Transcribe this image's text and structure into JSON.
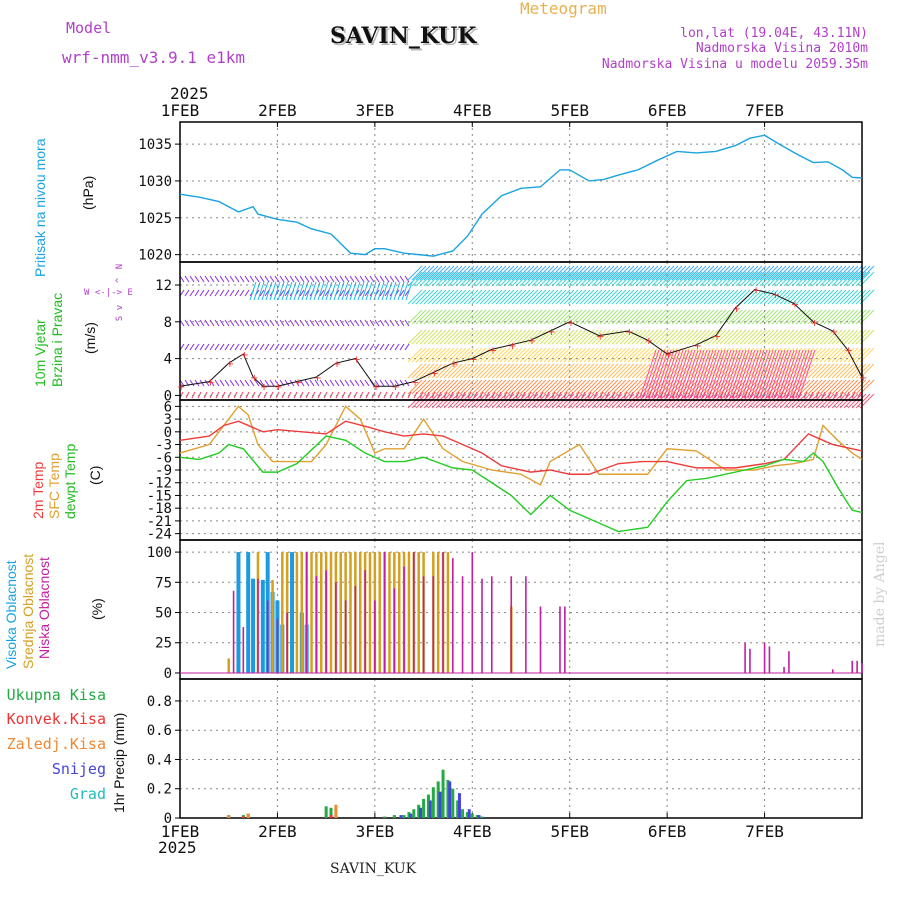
{
  "header": {
    "model_label": "Model",
    "model_name": "wrf-nmm_v3.9.1 e1km",
    "station": "SAVIN_KUK",
    "chart_kind": "Meteogram",
    "lonlat": "lon,lat (19.04E, 43.11N)",
    "elevation": "Nadmorska Visina 2010m",
    "model_elevation": "Nadmorska Visina u modelu 2059.35m",
    "year": "2025"
  },
  "footer": {
    "station": "SAVIN_KUK",
    "year": "2025",
    "credit": "made by Angel"
  },
  "colors": {
    "pressure": "#1aa3e0",
    "temp2m": "#ee3b3b",
    "sfc": "#e0a030",
    "dew": "#22cc22",
    "high": "#1e9be0",
    "mid": "#d4a020",
    "low": "#c020a0",
    "total": "#22aa44",
    "conv": "#ee3333",
    "snow": "#4444dd",
    "grid": "#888888"
  },
  "panel_labels": {
    "pressure": [
      "Pritisak na nivou mora",
      "(hPa)"
    ],
    "wind": [
      "10m Vjetar",
      "Brzina i Pravac",
      "(m/s)"
    ],
    "wind_compass": [
      "N",
      "^",
      "W <-|-> E",
      "v",
      "S"
    ],
    "temp": [
      "2m Temp",
      "SFC Temp",
      "dewpt Temp",
      "(C)"
    ],
    "cloud": [
      "Visoka Oblacnost",
      "Srednja Oblacnost",
      "Niska Oblacnost",
      "(%)"
    ],
    "precip_legend": [
      "Ukupna Kisa",
      "Konvek.Kisa",
      "Zaledj.Kisa",
      "Snijeg",
      "Grad"
    ],
    "precip_axis": "1hr Precip (mm)"
  },
  "chart_data": [
    {
      "type": "line",
      "ylabel": "(hPa)",
      "x_ticks": [
        "1FEB",
        "2FEB",
        "3FEB",
        "4FEB",
        "5FEB",
        "6FEB",
        "7FEB"
      ],
      "y_ticks": [
        "1020",
        "1025",
        "1030",
        "1035"
      ],
      "ylim": [
        1019,
        1038
      ],
      "grid": true,
      "series": [
        {
          "name": "Pritisak na nivou mora",
          "x": [
            0,
            0.2,
            0.4,
            0.5,
            0.6,
            0.75,
            0.8,
            1.0,
            1.2,
            1.35,
            1.55,
            1.65,
            1.75,
            1.9,
            2.0,
            2.1,
            2.3,
            2.45,
            2.6,
            2.8,
            2.95,
            3.1,
            3.3,
            3.5,
            3.7,
            3.9,
            4.0,
            4.2,
            4.35,
            4.5,
            4.7,
            4.9,
            5.1,
            5.3,
            5.5,
            5.7,
            5.85,
            6.0,
            6.15,
            6.35,
            6.5,
            6.65,
            6.8,
            6.9,
            7.0
          ],
          "values": [
            1028.2,
            1027.8,
            1027.2,
            1026.5,
            1025.8,
            1026.5,
            1025.5,
            1024.8,
            1024.4,
            1023.5,
            1022.8,
            1021.5,
            1020.2,
            1020.0,
            1020.8,
            1020.8,
            1020.2,
            1020.0,
            1019.8,
            1020.5,
            1022.5,
            1025.5,
            1028.0,
            1029.0,
            1029.2,
            1031.5,
            1031.5,
            1030.0,
            1030.2,
            1030.8,
            1031.5,
            1032.8,
            1034.0,
            1033.8,
            1034.0,
            1034.8,
            1035.8,
            1036.2,
            1035.0,
            1033.5,
            1032.5,
            1032.6,
            1031.5,
            1030.5,
            1030.4
          ]
        }
      ]
    },
    {
      "type": "line",
      "ylabel": "(m/s)",
      "y_ticks": [
        "0",
        "4",
        "8",
        "12"
      ],
      "ylim": [
        -0.5,
        14.5
      ],
      "grid": true,
      "series": [
        {
          "name": "10m Vjetar Brzina i Pravac",
          "x": [
            0,
            0.3,
            0.5,
            0.65,
            0.75,
            0.85,
            1.0,
            1.2,
            1.4,
            1.6,
            1.8,
            2.0,
            2.2,
            2.4,
            2.6,
            2.8,
            3.0,
            3.2,
            3.4,
            3.6,
            3.8,
            4.0,
            4.3,
            4.6,
            4.8,
            5.0,
            5.3,
            5.5,
            5.7,
            5.9,
            6.1,
            6.3,
            6.5,
            6.7,
            6.85,
            7.0
          ],
          "values": [
            1.0,
            1.5,
            3.5,
            4.5,
            2.0,
            1.0,
            1.0,
            1.5,
            2.0,
            3.5,
            4.0,
            1.0,
            1.0,
            1.5,
            2.5,
            3.5,
            4.0,
            5.0,
            5.5,
            6.0,
            7.0,
            8.0,
            6.5,
            7.0,
            6.0,
            4.5,
            5.5,
            6.5,
            9.5,
            11.5,
            11.0,
            10.0,
            8.0,
            7.0,
            5.0,
            2.0
          ]
        }
      ]
    },
    {
      "type": "line",
      "ylabel": "(C)",
      "y_ticks": [
        "6",
        "3",
        "0",
        "-3",
        "-6",
        "-9",
        "-12",
        "-15",
        "-18",
        "-21",
        "-24"
      ],
      "ylim": [
        -25.5,
        7.5
      ],
      "grid": true,
      "series": [
        {
          "name": "2m Temp",
          "x": [
            0,
            0.3,
            0.45,
            0.6,
            0.75,
            0.85,
            1.0,
            1.5,
            1.7,
            1.95,
            2.1,
            2.3,
            2.5,
            2.7,
            2.9,
            3.1,
            3.3,
            3.6,
            3.8,
            4.0,
            4.2,
            4.5,
            4.75,
            5.0,
            5.3,
            5.5,
            5.7,
            6.0,
            6.2,
            6.45,
            6.55,
            6.7,
            6.9,
            7.0
          ],
          "values": [
            -2.0,
            -1.0,
            1.5,
            2.5,
            1.0,
            0.0,
            0.5,
            -0.5,
            2.5,
            1.0,
            0.0,
            -1.0,
            -0.5,
            -1.0,
            -3.0,
            -5.0,
            -8.0,
            -9.5,
            -9.0,
            -10.0,
            -10.0,
            -7.5,
            -7.0,
            -7.0,
            -8.5,
            -8.5,
            -8.5,
            -7.5,
            -6.5,
            -0.5,
            -1.5,
            -3.0,
            -4.0,
            -4.5
          ]
        },
        {
          "name": "SFC Temp",
          "x": [
            0,
            0.3,
            0.5,
            0.6,
            0.7,
            0.8,
            0.95,
            1.2,
            1.35,
            1.5,
            1.7,
            1.85,
            2.0,
            2.1,
            2.3,
            2.5,
            2.7,
            2.9,
            3.2,
            3.5,
            3.7,
            3.8,
            4.1,
            4.3,
            4.5,
            4.8,
            5.0,
            5.3,
            5.6,
            5.9,
            6.1,
            6.3,
            6.5,
            6.6,
            6.75,
            6.9,
            7.0
          ],
          "values": [
            -5.0,
            -3.0,
            3.0,
            6.0,
            4.0,
            -3.0,
            -7.0,
            -7.0,
            -7.0,
            -3.0,
            6.0,
            3.0,
            -5.0,
            -4.0,
            -4.0,
            3.0,
            -4.0,
            -7.0,
            -9.0,
            -10.0,
            -12.5,
            -7.0,
            -3.0,
            -10.0,
            -10.0,
            -10.0,
            -4.0,
            -4.5,
            -9.0,
            -9.0,
            -8.0,
            -7.5,
            -6.5,
            1.5,
            -2.0,
            -5.0,
            -6.5
          ]
        },
        {
          "name": "dewpt Temp",
          "x": [
            0,
            0.2,
            0.4,
            0.5,
            0.65,
            0.85,
            1.0,
            1.2,
            1.5,
            1.7,
            1.9,
            2.1,
            2.3,
            2.5,
            2.8,
            3.0,
            3.2,
            3.4,
            3.6,
            3.8,
            4.0,
            4.2,
            4.5,
            4.8,
            5.0,
            5.2,
            5.4,
            5.6,
            5.8,
            6.0,
            6.2,
            6.4,
            6.5,
            6.6,
            6.75,
            6.9,
            7.0
          ],
          "values": [
            -6.0,
            -6.5,
            -5.0,
            -3.0,
            -4.0,
            -9.5,
            -9.5,
            -7.5,
            -1.0,
            -2.0,
            -5.0,
            -7.0,
            -7.0,
            -6.0,
            -8.5,
            -9.0,
            -12.0,
            -15.0,
            -19.5,
            -15.0,
            -18.5,
            -20.5,
            -23.5,
            -22.5,
            -16.5,
            -11.5,
            -11.0,
            -10.0,
            -9.0,
            -8.0,
            -6.5,
            -7.0,
            -5.0,
            -7.0,
            -13.0,
            -18.5,
            -19.0
          ]
        }
      ]
    },
    {
      "type": "bar",
      "ylabel": "(%)",
      "y_ticks": [
        "0",
        "25",
        "50",
        "75",
        "100"
      ],
      "ylim": [
        -5,
        110
      ],
      "grid": true,
      "series": [
        {
          "name": "Visoka Oblacnost",
          "x": [
            0.6,
            0.7,
            0.75,
            0.85,
            0.9,
            0.95,
            1.0,
            1.05,
            1.15,
            1.25,
            1.3
          ],
          "values": [
            100,
            100,
            78,
            77,
            100,
            67,
            60,
            40,
            100,
            50,
            40
          ]
        },
        {
          "name": "Srednja Oblacnost",
          "x": [
            0.5,
            0.8,
            0.95,
            1.05,
            1.1,
            1.2,
            1.25,
            1.3,
            1.35,
            1.4,
            1.45,
            1.5,
            1.55,
            1.6,
            1.65,
            1.7,
            1.75,
            1.8,
            1.85,
            1.9,
            1.95,
            2.0,
            2.05,
            2.1,
            2.15,
            2.2,
            2.25,
            2.3,
            2.35,
            2.4,
            2.45,
            2.5,
            2.6,
            2.65,
            2.7,
            2.75,
            3.4
          ],
          "values": [
            12,
            100,
            77,
            100,
            100,
            100,
            100,
            100,
            100,
            100,
            100,
            100,
            100,
            100,
            100,
            100,
            100,
            100,
            100,
            100,
            100,
            100,
            100,
            100,
            100,
            100,
            100,
            100,
            100,
            100,
            100,
            100,
            100,
            100,
            100,
            100,
            55
          ]
        },
        {
          "name": "Niska Oblacnost",
          "x": [
            0.55,
            0.65,
            0.8,
            0.9,
            1.0,
            1.1,
            1.3,
            1.4,
            1.5,
            1.6,
            1.7,
            1.8,
            1.9,
            2.0,
            2.1,
            2.2,
            2.3,
            2.4,
            2.5,
            2.6,
            2.7,
            2.8,
            2.9,
            3.0,
            3.1,
            3.2,
            3.4,
            3.55,
            3.7,
            3.9,
            3.95,
            5.8,
            5.85,
            6.0,
            6.05,
            6.2,
            6.25,
            6.7,
            6.9,
            6.95,
            7.0
          ],
          "values": [
            68,
            38,
            78,
            60,
            45,
            50,
            100,
            80,
            85,
            75,
            60,
            72,
            85,
            60,
            100,
            70,
            88,
            100,
            80,
            80,
            100,
            95,
            80,
            100,
            78,
            80,
            80,
            80,
            55,
            55,
            55,
            25,
            20,
            25,
            22,
            5,
            18,
            3,
            10,
            10,
            8
          ]
        }
      ]
    },
    {
      "type": "bar",
      "ylabel": "1hr Precip (mm)",
      "y_ticks": [
        "0",
        "0.2",
        "0.4",
        "0.6",
        "0.8"
      ],
      "ylim": [
        0,
        0.95
      ],
      "grid": true,
      "series": [
        {
          "name": "Ukupna Kisa",
          "x": [
            0.5,
            0.65,
            0.7,
            1.5,
            1.55,
            2.1,
            2.2,
            2.3,
            2.35,
            2.4,
            2.45,
            2.5,
            2.55,
            2.6,
            2.65,
            2.7,
            2.75,
            2.8,
            2.85,
            2.9,
            2.95,
            3.0,
            3.05,
            3.1
          ],
          "values": [
            0.02,
            0.02,
            0.03,
            0.08,
            0.07,
            0.01,
            0.02,
            0.02,
            0.04,
            0.06,
            0.09,
            0.13,
            0.16,
            0.21,
            0.25,
            0.33,
            0.26,
            0.2,
            0.12,
            0.06,
            0.04,
            0.03,
            0.02,
            0.01
          ]
        },
        {
          "name": "Konvek.Kisa",
          "x": [
            0.65,
            1.55
          ],
          "values": [
            0.01,
            0.02
          ]
        },
        {
          "name": "Zaledj.Kisa",
          "x": [
            0.5,
            0.7,
            1.6
          ],
          "values": [
            0.02,
            0.03,
            0.09
          ]
        },
        {
          "name": "Snijeg",
          "x": [
            2.25,
            2.35,
            2.45,
            2.55,
            2.65,
            2.75,
            2.85,
            2.95,
            3.05
          ],
          "values": [
            0.02,
            0.03,
            0.07,
            0.12,
            0.18,
            0.25,
            0.17,
            0.06,
            0.02
          ]
        }
      ]
    }
  ]
}
